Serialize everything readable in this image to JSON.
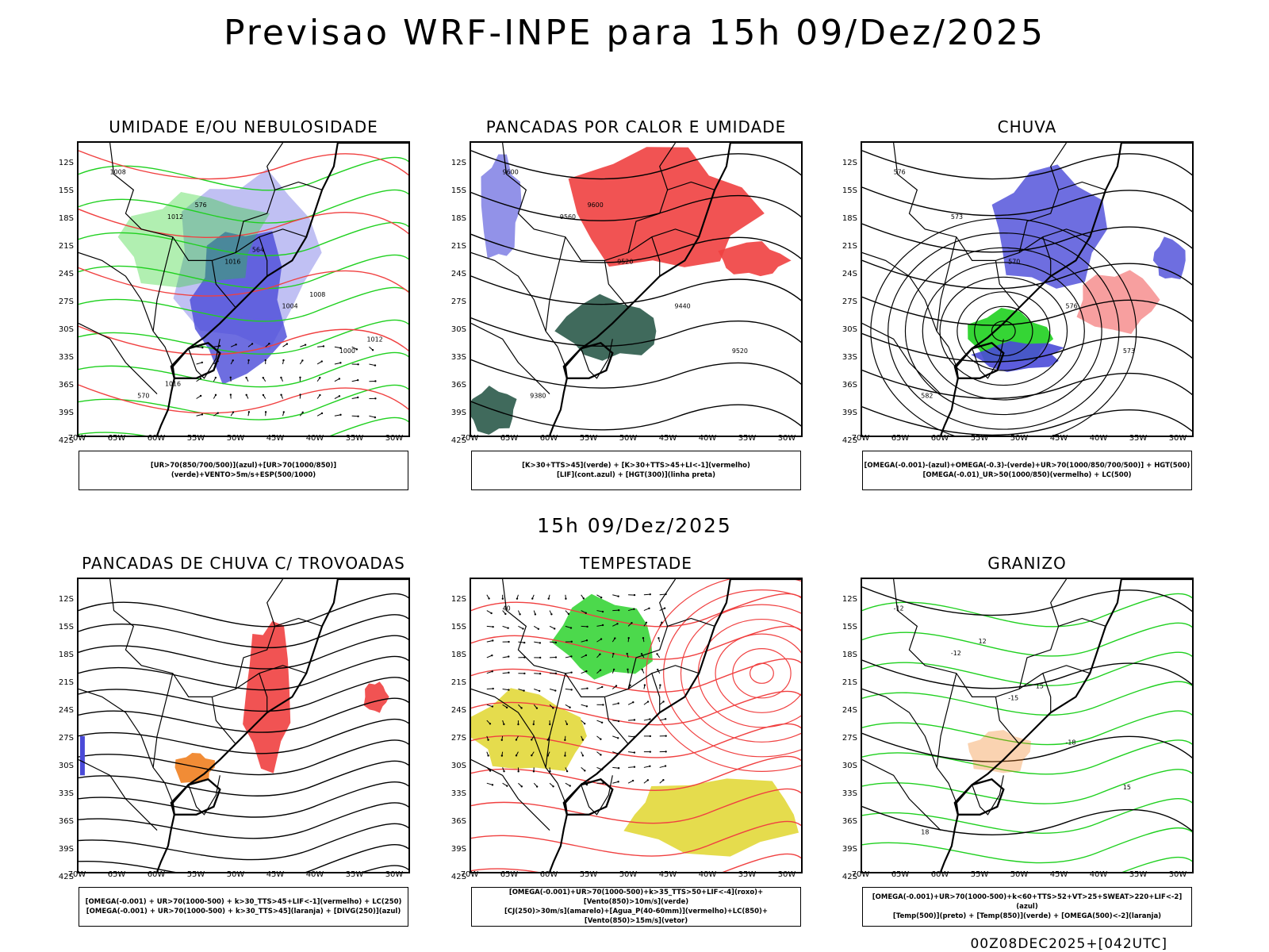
{
  "title": "Previsao WRF-INPE  para 15h 09/Dez/2025",
  "middle_title": "15h 09/Dez/2025",
  "footer": "00Z08DEC2025+[042UTC]",
  "axes": {
    "lat_labels": [
      "12S",
      "15S",
      "18S",
      "21S",
      "24S",
      "27S",
      "30S",
      "33S",
      "36S",
      "39S",
      "42S"
    ],
    "lon_labels": [
      "70W",
      "65W",
      "60W",
      "55W",
      "50W",
      "45W",
      "40W",
      "35W",
      "30W"
    ]
  },
  "panels": [
    {
      "title": "UMIDADE E/OU NEBULOSIDADE",
      "legend_lines": [
        "[UR>70(850/700/500)](azul)+[UR>70(1000/850)](verde)+VENTO>5m/s+ESP(500/1000)"
      ],
      "contour_labels": [
        "1008",
        "1012",
        "1016",
        "1004",
        "1000",
        "570",
        "576",
        "564",
        "1008",
        "1012",
        "1016"
      ]
    },
    {
      "title": "PANCADAS POR CALOR E UMIDADE",
      "legend_lines": [
        "[K>30+TTS>45](verde) + [K>30+TTS>45+LI<-1](vermelho)",
        "[LIF](cont.azul) + [HGT(300)](linha preta)"
      ],
      "contour_labels": [
        "9600",
        "9560",
        "9520",
        "9440",
        "9520",
        "9380",
        "9600"
      ]
    },
    {
      "title": "CHUVA",
      "legend_lines": [
        "[OMEGA(-0.001)-(azul)+OMEGA(-0.3)-(verde)+UR>70(1000/850/700/500)] + HGT(500)",
        "[OMEGA(-0.01)_UR>50(1000/850)(vermelho) + LC(500)"
      ],
      "contour_labels": [
        "576",
        "573",
        "570",
        "576",
        "573",
        "582"
      ]
    },
    {
      "title": "PANCADAS DE CHUVA C/ TROVOADAS",
      "legend_lines": [
        "[OMEGA(-0.001) + UR>70(1000-500) + k>30_TTS>45+LIF<-1](vermelho) + LC(250)",
        "[OMEGA(-0.001) + UR>70(1000-500) + k>30_TTS>45](laranja) + [DIVG(250)](azul)"
      ],
      "contour_labels": []
    },
    {
      "title": "TEMPESTADE",
      "legend_lines": [
        "[OMEGA(-0.001)+UR>70(1000-500)+k>35_TTS>50+LIF<-4](roxo)+[Vento(850)>10m/s](verde)",
        "[CJ(250)>30m/s](amarelo)+[Agua_P(40-60mm)](vermelho)+LC(850)+[Vento(850)>15m/s](vetor)"
      ],
      "contour_labels": [
        "40"
      ]
    },
    {
      "title": "GRANIZO",
      "legend_lines": [
        "[OMEGA(-0.001)+UR>70(1000-500)+k<60+TTS>52+VT>25+SWEAT>220+LIF<-2](azul)",
        "[Temp(500)](preto) + [Temp(850)](verde) + [OMEGA(500)<-2](laranja)"
      ],
      "contour_labels": [
        "-12",
        "-12",
        "-15",
        "-18",
        "15",
        "18",
        "12",
        "15"
      ]
    }
  ],
  "colors": {
    "blue": "#4a4ad8",
    "lightblue": "#b9b9f2",
    "green": "#1fd01f",
    "red": "#f04040",
    "darkgreen": "#2b5a4a",
    "yellow": "#e2d83a",
    "orange": "#f08020"
  }
}
